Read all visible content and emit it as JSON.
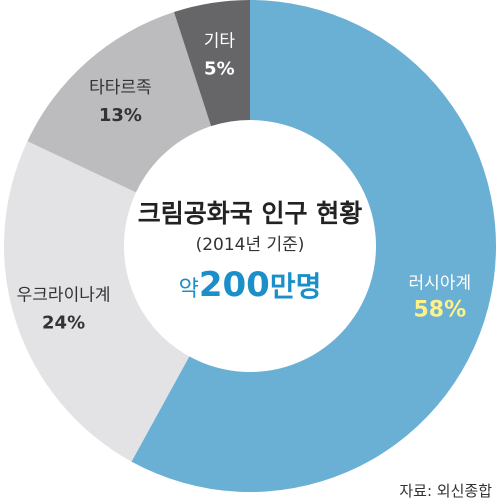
{
  "chart_data": {
    "type": "pie",
    "title": "크림공화국 인구 현황",
    "subtitle": "(2014년 기준)",
    "center_value": "약200만명",
    "center_value_parts": {
      "prefix": "약",
      "number": "200",
      "suffix": "만명"
    },
    "categories": [
      "러시아계",
      "우크라이나계",
      "타타르족",
      "기타"
    ],
    "values": [
      58,
      24,
      13,
      5
    ],
    "value_labels": [
      "58%",
      "24%",
      "13%",
      "5%"
    ],
    "colors": [
      "#6aafd4",
      "#e3e3e5",
      "#bcbcbe",
      "#666668"
    ],
    "label_colors": [
      "#ffffff",
      "#333333",
      "#333333",
      "#ffffff"
    ],
    "value_label_colors": [
      "#fff18a",
      "#333333",
      "#333333",
      "#ffffff"
    ],
    "accent_color": "#1a8fc9",
    "donut": true,
    "start": "12 o'clock",
    "direction": "clockwise"
  },
  "source": "자료: 외신종합"
}
